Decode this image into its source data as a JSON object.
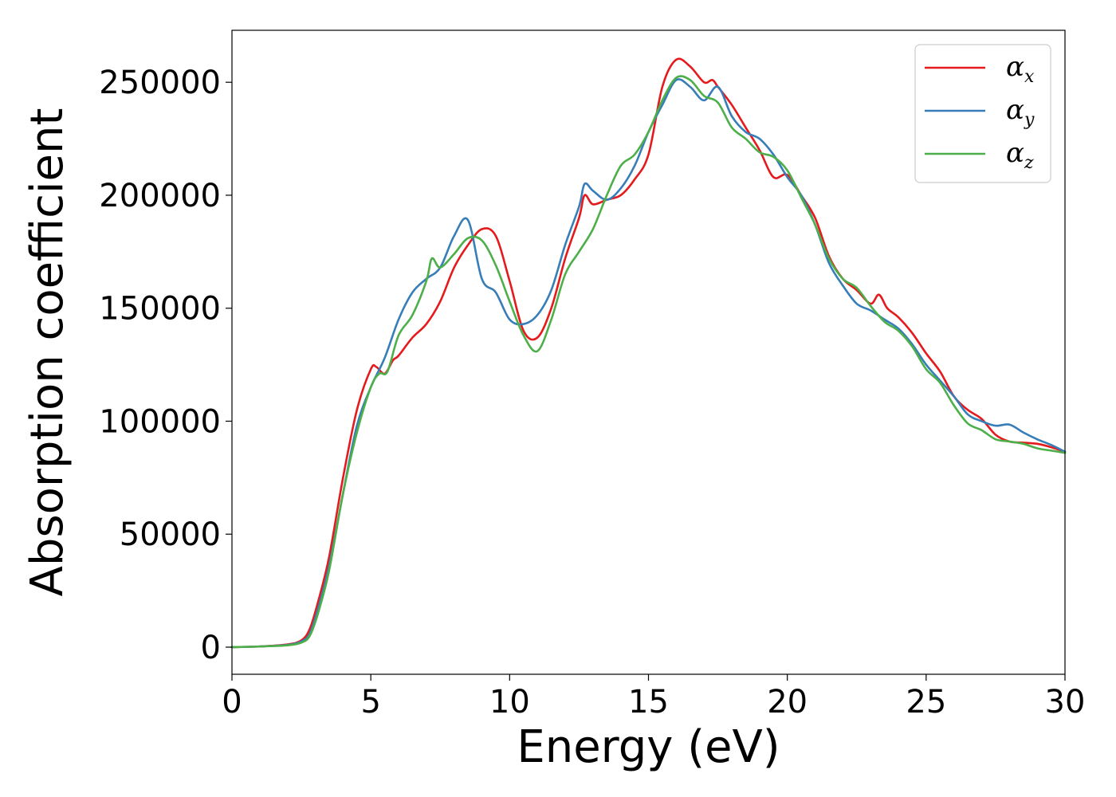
{
  "chart_data": {
    "type": "line",
    "title": "",
    "xlabel": "Energy (eV)",
    "ylabel": "Absorption coefficient",
    "xlim": [
      0,
      30
    ],
    "ylim": [
      -12000,
      273000
    ],
    "xticks": [
      0,
      5,
      10,
      15,
      20,
      25,
      30
    ],
    "yticks": [
      0,
      50000,
      100000,
      150000,
      200000,
      250000
    ],
    "grid": false,
    "legend_position": "top-right",
    "series": [
      {
        "name": "α_x",
        "legend_symbol": "α",
        "legend_subscript": "x",
        "color": "#e41a1c",
        "x": [
          0,
          1,
          2,
          2.5,
          2.8,
          3.1,
          3.5,
          4,
          4.5,
          5,
          5.2,
          5.5,
          5.8,
          6,
          6.5,
          7,
          7.5,
          8,
          8.5,
          9,
          9.5,
          10,
          10.5,
          11,
          11.5,
          12,
          12.5,
          12.7,
          13,
          13.5,
          14,
          14.5,
          15,
          15.5,
          16,
          16.5,
          17,
          17.3,
          17.5,
          18,
          18.5,
          19,
          19.5,
          20,
          20.5,
          21,
          21.5,
          22,
          22.5,
          23,
          23.3,
          23.6,
          24,
          24.5,
          25,
          25.5,
          26,
          26.5,
          27,
          27.5,
          28,
          28.5,
          29,
          29.5,
          30
        ],
        "y": [
          0,
          300,
          1200,
          3000,
          8000,
          20000,
          40000,
          75000,
          105000,
          123000,
          124000,
          121000,
          127000,
          129000,
          137000,
          143000,
          153000,
          168000,
          178000,
          185000,
          182000,
          162000,
          140000,
          137000,
          150000,
          172000,
          190000,
          200000,
          196000,
          198000,
          200000,
          207000,
          218000,
          248000,
          260000,
          257000,
          250000,
          251000,
          248000,
          240000,
          230000,
          220000,
          208000,
          209000,
          200000,
          190000,
          173000,
          163000,
          158000,
          152000,
          156000,
          150000,
          146000,
          139000,
          130000,
          122000,
          111000,
          105000,
          101000,
          94000,
          91000,
          90500,
          90000,
          88500,
          86500
        ]
      },
      {
        "name": "α_y",
        "legend_symbol": "α",
        "legend_subscript": "y",
        "color": "#377eb8",
        "x": [
          0,
          1,
          2,
          2.5,
          2.8,
          3.1,
          3.5,
          4,
          4.5,
          5,
          5.5,
          6,
          6.5,
          7,
          7.5,
          8,
          8.5,
          9,
          9.5,
          10,
          10.5,
          11,
          11.5,
          12,
          12.5,
          12.7,
          13,
          13.5,
          14,
          14.5,
          15,
          15.5,
          16,
          16.5,
          17,
          17.5,
          18,
          18.5,
          19,
          19.5,
          20,
          20.5,
          21,
          21.5,
          22,
          22.5,
          23,
          23.5,
          24,
          24.5,
          25,
          25.5,
          26,
          26.5,
          27,
          27.5,
          28,
          28.5,
          29,
          29.5,
          30
        ],
        "y": [
          0,
          300,
          1000,
          2500,
          6000,
          17000,
          36000,
          68000,
          98000,
          115000,
          128000,
          145000,
          157000,
          163000,
          168000,
          182000,
          189000,
          163000,
          157000,
          145000,
          143000,
          147000,
          158000,
          178000,
          195000,
          205000,
          202000,
          198000,
          203000,
          213000,
          228000,
          240000,
          251000,
          248000,
          242000,
          248000,
          235000,
          228000,
          225000,
          218000,
          208000,
          200000,
          187000,
          170000,
          160000,
          152000,
          149000,
          145000,
          141000,
          134000,
          125000,
          118000,
          111000,
          103000,
          100000,
          98000,
          98500,
          95000,
          92000,
          89500,
          86500
        ]
      },
      {
        "name": "α_z",
        "legend_symbol": "α",
        "legend_subscript": "z",
        "color": "#4daf4a",
        "x": [
          0,
          1,
          2,
          2.5,
          2.8,
          3.1,
          3.5,
          4,
          4.5,
          5,
          5.3,
          5.6,
          6,
          6.5,
          7,
          7.2,
          7.5,
          8,
          8.5,
          9,
          9.5,
          10,
          10.5,
          11,
          11.5,
          12,
          12.5,
          13,
          13.5,
          14,
          14.5,
          15,
          15.5,
          16,
          16.5,
          17,
          17.5,
          18,
          18.5,
          19,
          19.5,
          20,
          20.5,
          21,
          21.5,
          22,
          22.5,
          23,
          23.5,
          24,
          24.5,
          25,
          25.5,
          26,
          26.5,
          27,
          27.5,
          28,
          28.5,
          29,
          29.5,
          30
        ],
        "y": [
          0,
          300,
          800,
          2000,
          5000,
          15000,
          34000,
          68000,
          95000,
          115000,
          121000,
          122000,
          138000,
          147000,
          162000,
          172000,
          168000,
          174000,
          181000,
          180000,
          169000,
          153000,
          138000,
          131000,
          145000,
          165000,
          175000,
          185000,
          200000,
          213000,
          218000,
          228000,
          242000,
          252000,
          251000,
          244000,
          241000,
          230000,
          225000,
          219000,
          217000,
          211000,
          199000,
          187000,
          172000,
          163000,
          159000,
          151000,
          144000,
          140000,
          133000,
          123000,
          117000,
          107000,
          99000,
          96000,
          92000,
          91000,
          90000,
          88000,
          87000,
          86000
        ]
      }
    ]
  }
}
